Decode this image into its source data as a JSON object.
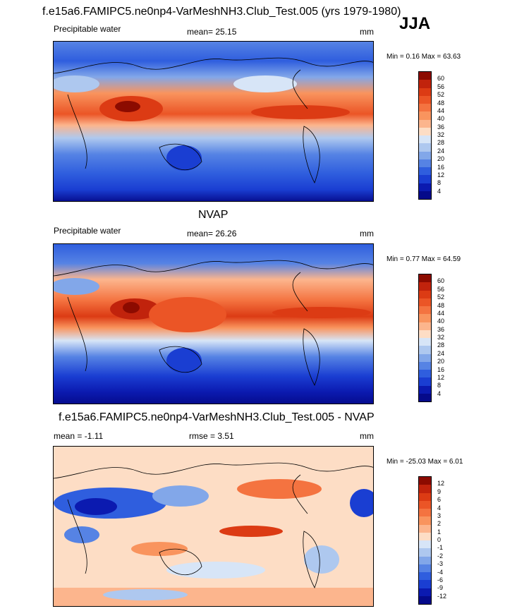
{
  "figure": {
    "season": "JJA",
    "panels": [
      {
        "title": "f.e15a6.FAMIPC5.ne0np4-VarMeshNH3.Club_Test.005 (yrs 1979-1980)",
        "left_label": "Precipitable water",
        "center_label": "mean=  25.15",
        "right_label": "mm",
        "minmax": "Min =   0.16 Max =  63.63",
        "colorbar": {
          "levels": [
            "60",
            "56",
            "52",
            "48",
            "44",
            "40",
            "36",
            "32",
            "28",
            "24",
            "20",
            "16",
            "12",
            "8",
            "4"
          ],
          "colors": [
            "#8c0b00",
            "#c1230c",
            "#dc3b14",
            "#eb5526",
            "#f47340",
            "#f9945e",
            "#fcb58d",
            "#fdddc5",
            "#d7e5f7",
            "#aec8ef",
            "#82a7e9",
            "#5683e4",
            "#2f5ede",
            "#1a3ed2",
            "#0b1ab0",
            "#050a8a"
          ]
        }
      },
      {
        "title": "NVAP",
        "left_label": "Precipitable water",
        "center_label": "mean=  26.26",
        "right_label": "mm",
        "minmax": "Min =   0.77 Max =  64.59",
        "colorbar": {
          "levels": [
            "60",
            "56",
            "52",
            "48",
            "44",
            "40",
            "36",
            "32",
            "28",
            "24",
            "20",
            "16",
            "12",
            "8",
            "4"
          ],
          "colors": [
            "#8c0b00",
            "#c1230c",
            "#dc3b14",
            "#eb5526",
            "#f47340",
            "#f9945e",
            "#fcb58d",
            "#fdddc5",
            "#d7e5f7",
            "#aec8ef",
            "#82a7e9",
            "#5683e4",
            "#2f5ede",
            "#1a3ed2",
            "#0b1ab0",
            "#050a8a"
          ]
        }
      },
      {
        "title": "f.e15a6.FAMIPC5.ne0np4-VarMeshNH3.Club_Test.005 - NVAP",
        "left_label": "mean =  -1.11",
        "center_label": "rmse =   3.51",
        "right_label": "mm",
        "minmax": "Min = -25.03 Max =   6.01",
        "colorbar": {
          "levels": [
            "12",
            "9",
            "6",
            "4",
            "3",
            "2",
            "1",
            "0",
            "-1",
            "-2",
            "-3",
            "-4",
            "-6",
            "-9",
            "-12"
          ],
          "colors": [
            "#8c0b00",
            "#c1230c",
            "#dc3b14",
            "#eb5526",
            "#f47340",
            "#f9945e",
            "#fcb58d",
            "#fdddc5",
            "#d7e5f7",
            "#aec8ef",
            "#82a7e9",
            "#5683e4",
            "#2f5ede",
            "#1a3ed2",
            "#0b1ab0",
            "#050a8a"
          ]
        }
      }
    ]
  }
}
